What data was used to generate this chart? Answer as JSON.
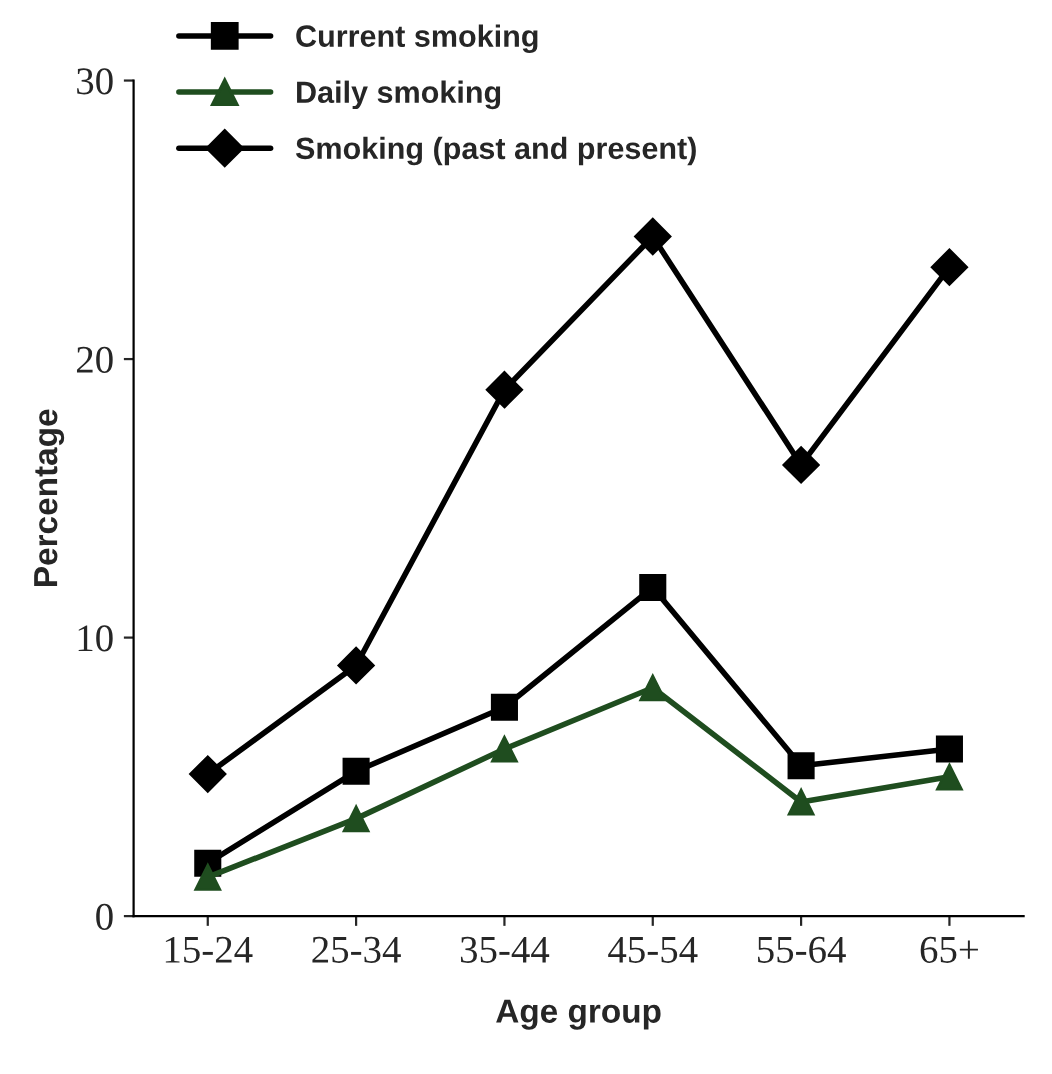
{
  "chart_data": {
    "type": "line",
    "xlabel": "Age group",
    "ylabel": "Percentage",
    "categories": [
      "15-24",
      "25-34",
      "35-44",
      "45-54",
      "55-64",
      "65+"
    ],
    "series": [
      {
        "name": "Current smoking",
        "color": "#000000",
        "marker": "square",
        "values": [
          1.9,
          5.2,
          7.5,
          11.8,
          5.4,
          6.0
        ]
      },
      {
        "name": "Daily smoking",
        "color": "#1f4d1f",
        "marker": "triangle",
        "values": [
          1.4,
          3.5,
          6.0,
          8.2,
          4.1,
          5.0
        ]
      },
      {
        "name": "Smoking (past and present)",
        "color": "#000000",
        "marker": "diamond",
        "values": [
          5.1,
          9.0,
          18.9,
          24.4,
          16.2,
          23.3
        ]
      }
    ],
    "ylim": [
      0,
      30
    ],
    "yticks": [
      0,
      10,
      20,
      30
    ],
    "grid": false,
    "legend": "top",
    "line_style": "solid"
  }
}
